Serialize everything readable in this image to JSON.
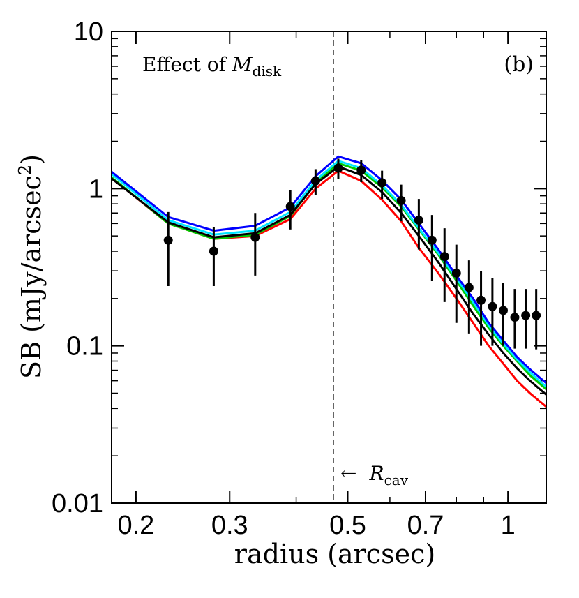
{
  "chart_data": {
    "type": "line",
    "title": "",
    "panel_label": "(b)",
    "annotation_text": "Effect of ",
    "annotation_symbol": "M",
    "annotation_subscript": "disk",
    "xlabel": "radius (arcsec)",
    "ylabel_prefix": "SB (mJy/arcsec",
    "ylabel_superscript": "2",
    "ylabel_suffix": ")",
    "x_scale": "log",
    "y_scale": "log",
    "xlim": [
      0.18,
      1.18
    ],
    "ylim": [
      0.01,
      10
    ],
    "x_ticks": [
      {
        "value": 0.2,
        "label": "0.2"
      },
      {
        "value": 0.3,
        "label": "0.3"
      },
      {
        "value": 0.5,
        "label": "0.5"
      },
      {
        "value": 0.7,
        "label": "0.7"
      },
      {
        "value": 1.0,
        "label": "1"
      }
    ],
    "y_ticks": [
      {
        "value": 0.01,
        "label": "0.01"
      },
      {
        "value": 0.1,
        "label": "0.1"
      },
      {
        "value": 1,
        "label": "1"
      },
      {
        "value": 10,
        "label": "10"
      }
    ],
    "cavity_radius": 0.47,
    "cavity_label_symbol": "R",
    "cavity_label_subscript": "cav",
    "cavity_arrow": "←",
    "series": [
      {
        "name": "model-red",
        "color": "#ff0000",
        "x": [
          0.18,
          0.23,
          0.28,
          0.335,
          0.39,
          0.435,
          0.48,
          0.53,
          0.58,
          0.63,
          0.68,
          0.74,
          0.8,
          0.86,
          0.92,
          0.98,
          1.04,
          1.1,
          1.18
        ],
        "y": [
          1.17,
          0.6,
          0.48,
          0.5,
          0.64,
          1.0,
          1.3,
          1.12,
          0.85,
          0.62,
          0.42,
          0.29,
          0.2,
          0.14,
          0.1,
          0.077,
          0.06,
          0.05,
          0.041
        ]
      },
      {
        "name": "model-green",
        "color": "#00cc00",
        "x": [
          0.18,
          0.23,
          0.28,
          0.335,
          0.39,
          0.435,
          0.48,
          0.53,
          0.58,
          0.63,
          0.68,
          0.74,
          0.8,
          0.86,
          0.92,
          0.98,
          1.04,
          1.1,
          1.18
        ],
        "y": [
          1.18,
          0.6,
          0.48,
          0.51,
          0.67,
          1.08,
          1.45,
          1.3,
          1.02,
          0.77,
          0.55,
          0.38,
          0.26,
          0.18,
          0.13,
          0.1,
          0.08,
          0.065,
          0.053
        ]
      },
      {
        "name": "model-cyan",
        "color": "#00e5ff",
        "x": [
          0.18,
          0.23,
          0.28,
          0.335,
          0.39,
          0.435,
          0.48,
          0.53,
          0.58,
          0.63,
          0.68,
          0.74,
          0.8,
          0.86,
          0.92,
          0.98,
          1.04,
          1.1,
          1.18
        ],
        "y": [
          1.24,
          0.63,
          0.51,
          0.54,
          0.71,
          1.13,
          1.5,
          1.35,
          1.05,
          0.79,
          0.56,
          0.39,
          0.27,
          0.19,
          0.135,
          0.103,
          0.082,
          0.068,
          0.055
        ]
      },
      {
        "name": "model-blue",
        "color": "#0000ff",
        "x": [
          0.18,
          0.23,
          0.28,
          0.335,
          0.39,
          0.435,
          0.48,
          0.53,
          0.58,
          0.63,
          0.68,
          0.74,
          0.8,
          0.86,
          0.92,
          0.98,
          1.04,
          1.1,
          1.18
        ],
        "y": [
          1.28,
          0.66,
          0.54,
          0.58,
          0.76,
          1.2,
          1.6,
          1.45,
          1.13,
          0.85,
          0.6,
          0.41,
          0.28,
          0.2,
          0.14,
          0.108,
          0.085,
          0.071,
          0.058
        ]
      },
      {
        "name": "model-black",
        "color": "#000000",
        "x": [
          0.18,
          0.23,
          0.28,
          0.335,
          0.39,
          0.435,
          0.48,
          0.53,
          0.58,
          0.63,
          0.68,
          0.74,
          0.8,
          0.86,
          0.92,
          0.98,
          1.04,
          1.1,
          1.18
        ],
        "y": [
          1.16,
          0.61,
          0.49,
          0.52,
          0.68,
          1.07,
          1.38,
          1.22,
          0.95,
          0.7,
          0.5,
          0.34,
          0.23,
          0.16,
          0.118,
          0.09,
          0.072,
          0.06,
          0.049
        ]
      }
    ],
    "observations": {
      "name": "data",
      "color": "#000000",
      "points": [
        {
          "x": 0.23,
          "y": 0.47,
          "y_low": 0.24,
          "y_high": 0.71
        },
        {
          "x": 0.28,
          "y": 0.4,
          "y_low": 0.24,
          "y_high": 0.57
        },
        {
          "x": 0.335,
          "y": 0.49,
          "y_low": 0.28,
          "y_high": 0.7
        },
        {
          "x": 0.39,
          "y": 0.77,
          "y_low": 0.55,
          "y_high": 0.98
        },
        {
          "x": 0.435,
          "y": 1.12,
          "y_low": 0.91,
          "y_high": 1.33
        },
        {
          "x": 0.48,
          "y": 1.35,
          "y_low": 1.15,
          "y_high": 1.55
        },
        {
          "x": 0.53,
          "y": 1.31,
          "y_low": 1.1,
          "y_high": 1.52
        },
        {
          "x": 0.58,
          "y": 1.09,
          "y_low": 0.86,
          "y_high": 1.3
        },
        {
          "x": 0.63,
          "y": 0.84,
          "y_low": 0.62,
          "y_high": 1.06
        },
        {
          "x": 0.68,
          "y": 0.63,
          "y_low": 0.41,
          "y_high": 0.86
        },
        {
          "x": 0.72,
          "y": 0.47,
          "y_low": 0.26,
          "y_high": 0.68
        },
        {
          "x": 0.76,
          "y": 0.37,
          "y_low": 0.19,
          "y_high": 0.56
        },
        {
          "x": 0.8,
          "y": 0.29,
          "y_low": 0.14,
          "y_high": 0.44
        },
        {
          "x": 0.845,
          "y": 0.235,
          "y_low": 0.12,
          "y_high": 0.35
        },
        {
          "x": 0.89,
          "y": 0.195,
          "y_low": 0.1,
          "y_high": 0.3
        },
        {
          "x": 0.935,
          "y": 0.178,
          "y_low": 0.1,
          "y_high": 0.27
        },
        {
          "x": 0.98,
          "y": 0.168,
          "y_low": 0.1,
          "y_high": 0.25
        },
        {
          "x": 1.03,
          "y": 0.152,
          "y_low": 0.096,
          "y_high": 0.23
        },
        {
          "x": 1.08,
          "y": 0.156,
          "y_low": 0.096,
          "y_high": 0.23
        },
        {
          "x": 1.13,
          "y": 0.156,
          "y_low": 0.095,
          "y_high": 0.23
        }
      ]
    }
  }
}
